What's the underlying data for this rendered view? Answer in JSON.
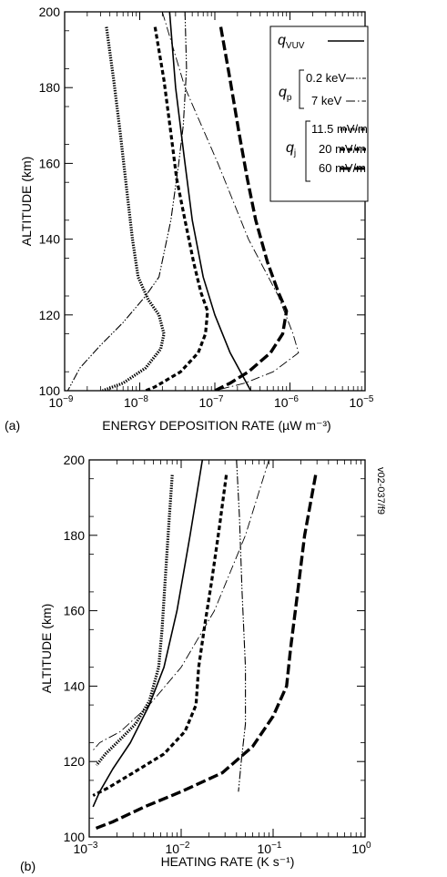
{
  "figure_code": "v02-037/f9",
  "legend": {
    "q_vuv": {
      "main": "q",
      "sub": "VUV"
    },
    "q_p": {
      "main": "q",
      "sub": "p"
    },
    "q_j": {
      "main": "q",
      "sub": "j"
    },
    "p_low": "0.2 keV",
    "p_high": "7 keV",
    "j_low": "11.5 mV/m",
    "j_mid": "20 mV/m",
    "j_high": "60 mV/m"
  },
  "chart_data": [
    {
      "panel": "(a)",
      "type": "line",
      "xscale": "log",
      "xlabel": "ENERGY DEPOSITION RATE (µW m⁻³)",
      "ylabel": "ALTITUDE (km)",
      "xlim": [
        1e-09,
        1e-05
      ],
      "ylim": [
        100,
        200
      ],
      "xticks": [
        {
          "base": "10",
          "exp": "−9"
        },
        {
          "base": "10",
          "exp": "−8"
        },
        {
          "base": "10",
          "exp": "−7"
        },
        {
          "base": "10",
          "exp": "−6"
        },
        {
          "base": "10",
          "exp": "−5"
        }
      ],
      "yticks": [
        "100",
        "120",
        "140",
        "160",
        "180",
        "200"
      ],
      "grid": false,
      "legend_position": "top-right",
      "series": [
        {
          "key": "qvuv",
          "style": "solid",
          "points": [
            [
              2.5e-08,
              200
            ],
            [
              3e-08,
              180
            ],
            [
              4e-08,
              160
            ],
            [
              5e-08,
              145
            ],
            [
              7e-08,
              130
            ],
            [
              1e-07,
              120
            ],
            [
              1.6e-07,
              110
            ],
            [
              3e-07,
              100
            ]
          ]
        },
        {
          "key": "qp_02",
          "style": "dashdot",
          "points": [
            [
              4e-08,
              200
            ],
            [
              4.2e-08,
              185
            ],
            [
              3.8e-08,
              170
            ],
            [
              3.3e-08,
              160
            ],
            [
              2.6e-08,
              145
            ],
            [
              1.8e-08,
              130
            ],
            [
              1.2e-08,
              125
            ],
            [
              6e-09,
              118
            ],
            [
              3e-09,
              112
            ],
            [
              1.6e-09,
              106
            ],
            [
              1.1e-09,
              100
            ]
          ]
        },
        {
          "key": "qp_7",
          "style": "dashdot-thin",
          "points": [
            [
              2e-08,
              200
            ],
            [
              4e-08,
              180
            ],
            [
              1.1e-07,
              160
            ],
            [
              2.8e-07,
              140
            ],
            [
              7e-07,
              125
            ],
            [
              1.1e-06,
              115
            ],
            [
              1.3e-06,
              110
            ],
            [
              6e-07,
              105
            ],
            [
              2.5e-07,
              102
            ],
            [
              1e-07,
              100
            ]
          ]
        },
        {
          "key": "qj_11",
          "style": "dotted",
          "points": [
            [
              3.6e-09,
              196
            ],
            [
              4.5e-09,
              182
            ],
            [
              5.5e-09,
              168
            ],
            [
              6.8e-09,
              152
            ],
            [
              8e-09,
              140
            ],
            [
              9.5e-09,
              130
            ],
            [
              1.3e-08,
              124
            ],
            [
              1.8e-08,
              120
            ],
            [
              2.1e-08,
              115
            ],
            [
              1.9e-08,
              111
            ],
            [
              1.2e-08,
              106
            ],
            [
              6e-09,
              102
            ],
            [
              3.2e-09,
              100
            ]
          ]
        },
        {
          "key": "qj_20",
          "style": "dashed",
          "points": [
            [
              1.6e-08,
              196
            ],
            [
              2.1e-08,
              182
            ],
            [
              2.6e-08,
              168
            ],
            [
              3.1e-08,
              156
            ],
            [
              4e-08,
              145
            ],
            [
              5.2e-08,
              134
            ],
            [
              6.5e-08,
              126
            ],
            [
              8e-08,
              121
            ],
            [
              7.5e-08,
              115
            ],
            [
              6e-08,
              110
            ],
            [
              3.5e-08,
              105
            ],
            [
              1.6e-08,
              101
            ],
            [
              1.2e-08,
              100
            ]
          ]
        },
        {
          "key": "qj_60",
          "style": "longdash",
          "points": [
            [
              1.2e-07,
              196
            ],
            [
              1.6e-07,
              182
            ],
            [
              2.1e-07,
              168
            ],
            [
              2.7e-07,
              156
            ],
            [
              3.5e-07,
              145
            ],
            [
              5e-07,
              134
            ],
            [
              7e-07,
              126
            ],
            [
              9e-07,
              121
            ],
            [
              8e-07,
              115
            ],
            [
              5.5e-07,
              110
            ],
            [
              2.8e-07,
              105
            ],
            [
              1.6e-07,
              102
            ],
            [
              1e-07,
              100
            ]
          ]
        }
      ]
    },
    {
      "panel": "(b)",
      "type": "line",
      "xscale": "log",
      "xlabel": "HEATING RATE (K s⁻¹)",
      "ylabel": "ALTITUDE (km)",
      "xlim": [
        0.001,
        1
      ],
      "ylim": [
        100,
        200
      ],
      "xticks": [
        {
          "base": "10",
          "exp": "−3"
        },
        {
          "base": "10",
          "exp": "−2"
        },
        {
          "base": "10",
          "exp": "−1"
        },
        {
          "base": "10",
          "exp": "0"
        }
      ],
      "yticks": [
        "100",
        "120",
        "140",
        "160",
        "180",
        "200"
      ],
      "grid": false,
      "series": [
        {
          "key": "qvuv",
          "style": "solid",
          "points": [
            [
              0.017,
              200
            ],
            [
              0.0125,
              180
            ],
            [
              0.009,
              160
            ],
            [
              0.0065,
              145
            ],
            [
              0.0045,
              135
            ],
            [
              0.0028,
              125
            ],
            [
              0.0018,
              118
            ],
            [
              0.0013,
              112
            ],
            [
              0.0011,
              108
            ]
          ]
        },
        {
          "key": "qp_02",
          "style": "dashdot",
          "points": [
            [
              0.04,
              200
            ],
            [
              0.043,
              185
            ],
            [
              0.046,
              165
            ],
            [
              0.05,
              145
            ],
            [
              0.05,
              130
            ],
            [
              0.045,
              120
            ],
            [
              0.042,
              112
            ]
          ]
        },
        {
          "key": "qp_7",
          "style": "dashdot-thin",
          "points": [
            [
              0.09,
              200
            ],
            [
              0.05,
              180
            ],
            [
              0.023,
              160
            ],
            [
              0.01,
              145
            ],
            [
              0.0045,
              135
            ],
            [
              0.0022,
              128
            ],
            [
              0.0013,
              125
            ],
            [
              0.0011,
              123
            ]
          ]
        },
        {
          "key": "qj_11",
          "style": "dotted",
          "points": [
            [
              0.008,
              196
            ],
            [
              0.0073,
              182
            ],
            [
              0.0067,
              168
            ],
            [
              0.0062,
              155
            ],
            [
              0.0057,
              145
            ],
            [
              0.0045,
              136
            ],
            [
              0.0032,
              130
            ],
            [
              0.0022,
              126
            ],
            [
              0.0015,
              122
            ],
            [
              0.0012,
              119
            ]
          ]
        },
        {
          "key": "qj_20",
          "style": "dashed",
          "points": [
            [
              0.031,
              196
            ],
            [
              0.026,
              182
            ],
            [
              0.0215,
              168
            ],
            [
              0.018,
              156
            ],
            [
              0.0155,
              145
            ],
            [
              0.0145,
              135
            ],
            [
              0.011,
              128
            ],
            [
              0.0065,
              122
            ],
            [
              0.003,
              117
            ],
            [
              0.0016,
              113
            ],
            [
              0.0011,
              111
            ]
          ]
        },
        {
          "key": "qj_60",
          "style": "longdash",
          "points": [
            [
              0.29,
              196
            ],
            [
              0.22,
              180
            ],
            [
              0.185,
              165
            ],
            [
              0.155,
              150
            ],
            [
              0.14,
              140
            ],
            [
              0.1,
              132
            ],
            [
              0.06,
              124
            ],
            [
              0.028,
              117
            ],
            [
              0.01,
              112
            ],
            [
              0.004,
              108
            ],
            [
              0.0018,
              104
            ],
            [
              0.0011,
              102
            ]
          ]
        }
      ]
    }
  ]
}
